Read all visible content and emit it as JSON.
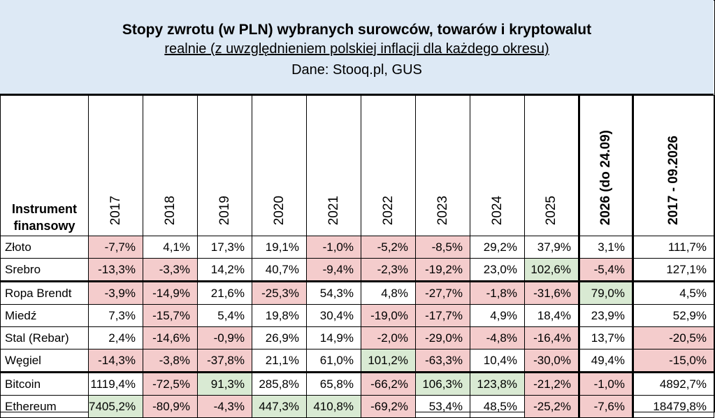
{
  "header": {
    "title": "Stopy zwrotu (w PLN) wybranych surowców, towarów i kryptowalut",
    "subtitle": "realnie (z uwzględnieniem polskiej inflacji dla każdego okresu)",
    "source": "Dane: Stooq.pl, GUS"
  },
  "table": {
    "first_col_header_line1": "Instrument",
    "first_col_header_line2": "finansowy",
    "columns": [
      "2017",
      "2018",
      "2019",
      "2020",
      "2021",
      "2022",
      "2023",
      "2024",
      "2025",
      "2026 (do 24.09)",
      "2017 - 09.2026"
    ],
    "rows": [
      {
        "name": "Złoto",
        "values": [
          "-7,7%",
          "4,1%",
          "17,3%",
          "19,1%",
          "-1,0%",
          "-5,2%",
          "-8,5%",
          "29,2%",
          "37,9%",
          "3,1%",
          "111,7%"
        ],
        "colors": [
          "red",
          "",
          "",
          "",
          "red",
          "red",
          "red",
          "",
          "",
          "",
          ""
        ]
      },
      {
        "name": "Srebro",
        "values": [
          "-13,3%",
          "-3,3%",
          "14,2%",
          "40,7%",
          "-9,4%",
          "-2,3%",
          "-19,2%",
          "23,0%",
          "102,6%",
          "-5,4%",
          "127,1%"
        ],
        "colors": [
          "red",
          "red",
          "",
          "",
          "red",
          "red",
          "red",
          "",
          "green",
          "red",
          ""
        ]
      },
      {
        "name": "Ropa Brendt",
        "values": [
          "-3,9%",
          "-14,9%",
          "21,6%",
          "-25,3%",
          "54,3%",
          "4,8%",
          "-27,7%",
          "-1,8%",
          "-31,6%",
          "79,0%",
          "4,5%"
        ],
        "colors": [
          "red",
          "red",
          "",
          "red",
          "",
          "",
          "red",
          "red",
          "red",
          "green",
          ""
        ]
      },
      {
        "name": "Miedź",
        "values": [
          "7,3%",
          "-15,7%",
          "5,4%",
          "19,8%",
          "30,4%",
          "-19,0%",
          "-17,7%",
          "4,9%",
          "18,4%",
          "23,9%",
          "52,9%"
        ],
        "colors": [
          "",
          "red",
          "",
          "",
          "",
          "red",
          "red",
          "",
          "",
          "",
          ""
        ]
      },
      {
        "name": "Stal (Rebar)",
        "values": [
          "2,4%",
          "-14,6%",
          "-0,9%",
          "26,9%",
          "14,9%",
          "-2,0%",
          "-29,0%",
          "-4,8%",
          "-16,4%",
          "13,7%",
          "-20,5%"
        ],
        "colors": [
          "",
          "red",
          "red",
          "",
          "",
          "red",
          "red",
          "red",
          "red",
          "",
          "red"
        ]
      },
      {
        "name": "Węgiel",
        "values": [
          "-14,3%",
          "-3,8%",
          "-37,8%",
          "21,1%",
          "61,0%",
          "101,2%",
          "-63,3%",
          "10,4%",
          "-30,0%",
          "49,4%",
          "-15,0%"
        ],
        "colors": [
          "red",
          "red",
          "red",
          "",
          "",
          "green",
          "red",
          "",
          "red",
          "",
          "red"
        ]
      },
      {
        "name": "Bitcoin",
        "values": [
          "1119,4%",
          "-72,5%",
          "91,3%",
          "285,8%",
          "65,8%",
          "-66,2%",
          "106,3%",
          "123,8%",
          "-21,2%",
          "-1,0%",
          "4892,7%"
        ],
        "colors": [
          "",
          "red",
          "green",
          "",
          "",
          "red",
          "green",
          "green",
          "red",
          "red",
          ""
        ]
      },
      {
        "name": "Ethereum",
        "values": [
          "7405,2%",
          "-80,9%",
          "-4,3%",
          "447,3%",
          "410,8%",
          "-69,2%",
          "53,4%",
          "48,5%",
          "-25,2%",
          "-7,6%",
          "18479,8%"
        ],
        "colors": [
          "green",
          "red",
          "red",
          "green",
          "green",
          "red",
          "",
          "",
          "red",
          "red",
          ""
        ]
      }
    ]
  }
}
